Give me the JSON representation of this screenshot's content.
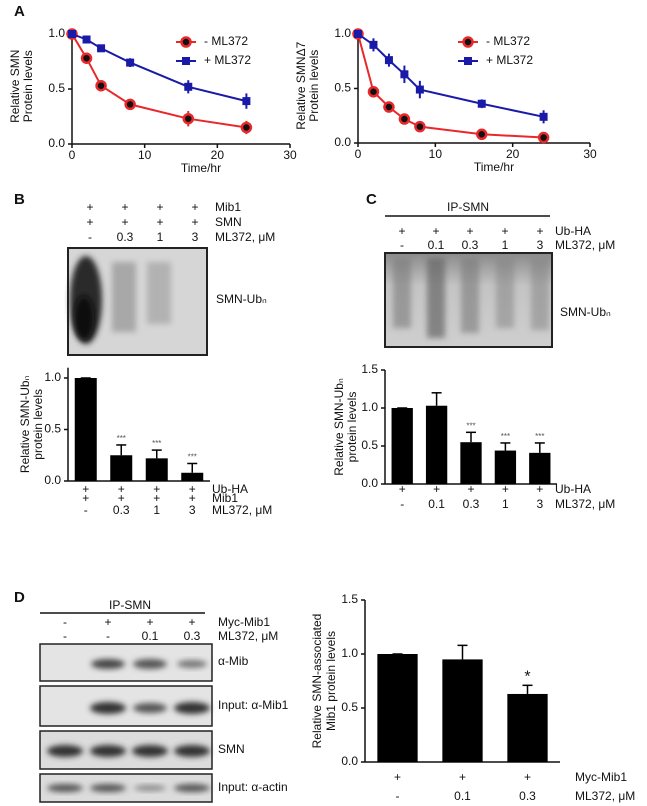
{
  "panels": [
    "A",
    "B",
    "C",
    "D"
  ],
  "chart_data": [
    {
      "type": "line",
      "ylabel": [
        "Relative SMN",
        "Protein levels"
      ],
      "xlabel": "Time/hr",
      "xlim": [
        0,
        30
      ],
      "xticks": [
        0,
        10,
        20,
        30
      ],
      "ylim": [
        0,
        1.05
      ],
      "yticks": [
        {
          "value": 0,
          "label": "0.0"
        },
        {
          "value": 0.5,
          "label": "0.5"
        },
        {
          "value": 1,
          "label": "1.0"
        }
      ],
      "legend": "upper right",
      "series": [
        {
          "name": "-  ML372",
          "color": "#e8282a",
          "marker": "circle",
          "x": [
            0,
            2,
            4,
            8,
            16,
            24
          ],
          "values": [
            1,
            0.78,
            0.53,
            0.36,
            0.23,
            0.15
          ],
          "errors": [
            0,
            0.05,
            0.04,
            0.04,
            0.07,
            0.06
          ]
        },
        {
          "name": "+ ML372",
          "color": "#1a1aa8",
          "marker": "square",
          "x": [
            0,
            2,
            4,
            8,
            16,
            24
          ],
          "values": [
            1,
            0.95,
            0.87,
            0.74,
            0.52,
            0.39
          ],
          "errors": [
            0,
            0.03,
            0.03,
            0.04,
            0.06,
            0.07
          ]
        }
      ]
    },
    {
      "type": "line",
      "ylabel": [
        "Relative SMNΔ7",
        "Protein levels"
      ],
      "xlabel": "Time/hr",
      "xlim": [
        0,
        30
      ],
      "xticks": [
        0,
        10,
        20,
        30
      ],
      "ylim": [
        0,
        1.05
      ],
      "yticks": [
        {
          "value": 0,
          "label": "0.0"
        },
        {
          "value": 0.5,
          "label": "0.5"
        },
        {
          "value": 1,
          "label": "1.0"
        }
      ],
      "legend": "upper right",
      "series": [
        {
          "name": "-  ML372",
          "color": "#e8282a",
          "marker": "circle",
          "x": [
            0,
            2,
            4,
            6,
            8,
            16,
            24
          ],
          "values": [
            1,
            0.47,
            0.33,
            0.22,
            0.15,
            0.08,
            0.05
          ],
          "errors": [
            0,
            0.04,
            0.04,
            0.03,
            0.03,
            0.03,
            0.02
          ]
        },
        {
          "name": "+ ML372",
          "color": "#1a1aa8",
          "marker": "square",
          "x": [
            0,
            2,
            4,
            6,
            8,
            16,
            24
          ],
          "values": [
            1,
            0.9,
            0.76,
            0.63,
            0.49,
            0.36,
            0.24
          ],
          "errors": [
            0,
            0.06,
            0.06,
            0.08,
            0.08,
            0.04,
            0.06
          ]
        }
      ]
    },
    {
      "type": "bar",
      "ylabel": [
        "Relative SMN-Ubₙ",
        "protein levels"
      ],
      "ylim": [
        0,
        1.1
      ],
      "yticks": [
        {
          "value": 0,
          "label": "0.0"
        },
        {
          "value": 0.5,
          "label": "0.5"
        },
        {
          "value": 1,
          "label": "1.0"
        }
      ],
      "color": "#000000",
      "values": [
        1,
        0.25,
        0.22,
        0.08
      ],
      "errors": [
        0,
        0.1,
        0.08,
        0.09
      ],
      "annotations": [
        null,
        "***",
        "***",
        "***"
      ],
      "conditions": [
        {
          "label": "Ub-HA",
          "marks": [
            "+",
            "+",
            "+",
            "+"
          ]
        },
        {
          "label": "Mib1",
          "marks": [
            "+",
            "+",
            "+",
            "+"
          ]
        },
        {
          "label": "ML372, μM",
          "marks": [
            "-",
            "0.3",
            "1",
            "3"
          ]
        }
      ]
    },
    {
      "type": "bar",
      "ylabel": [
        "Relative SMN-Ubₙ",
        "protein levels"
      ],
      "ylim": [
        0,
        1.5
      ],
      "yticks": [
        {
          "value": 0,
          "label": "0.0"
        },
        {
          "value": 0.5,
          "label": "0.5"
        },
        {
          "value": 1,
          "label": "1.0"
        },
        {
          "value": 1.5,
          "label": "1.5"
        }
      ],
      "color": "#000000",
      "values": [
        1,
        1.03,
        0.55,
        0.44,
        0.41
      ],
      "errors": [
        0,
        0.17,
        0.13,
        0.1,
        0.13
      ],
      "annotations": [
        null,
        null,
        "***",
        "***",
        "***"
      ],
      "conditions": [
        {
          "label": "Ub-HA",
          "marks": [
            "+",
            "+",
            "+",
            "+",
            "+"
          ]
        },
        {
          "label": "ML372, μM",
          "marks": [
            "-",
            "0.1",
            "0.3",
            "1",
            "3"
          ]
        }
      ]
    },
    {
      "type": "bar",
      "ylabel": [
        "Relative SMN-associated",
        "Mib1 protein levels"
      ],
      "ylim": [
        0,
        1.5
      ],
      "yticks": [
        {
          "value": 0,
          "label": "0.0"
        },
        {
          "value": 0.5,
          "label": "0.5"
        },
        {
          "value": 1,
          "label": "1.0"
        },
        {
          "value": 1.5,
          "label": "1.5"
        }
      ],
      "color": "#000000",
      "values": [
        1,
        0.95,
        0.63
      ],
      "errors": [
        0,
        0.13,
        0.08
      ],
      "annotations": [
        null,
        null,
        "*"
      ],
      "conditions": [
        {
          "label": "Myc-Mib1",
          "marks": [
            "+",
            "+",
            "+"
          ]
        },
        {
          "label": "ML372, μM",
          "marks": [
            "-",
            "0.1",
            "0.3"
          ]
        }
      ]
    }
  ],
  "blots": [
    {
      "rows": [
        {
          "label": "Mib1",
          "marks": [
            "+",
            "+",
            "+",
            "+"
          ]
        },
        {
          "label": "SMN",
          "marks": [
            "+",
            "+",
            "+",
            "+"
          ]
        },
        {
          "label": "ML372, μM",
          "marks": [
            "-",
            "0.3",
            "1",
            "3"
          ]
        }
      ],
      "band_labels": [
        "SMN-Ubₙ"
      ]
    },
    {
      "header": "IP-SMN",
      "rows": [
        {
          "label": "Ub-HA",
          "marks": [
            "+",
            "+",
            "+",
            "+",
            "+"
          ]
        },
        {
          "label": "ML372, μM",
          "marks": [
            "-",
            "0.1",
            "0.3",
            "1",
            "3"
          ]
        }
      ],
      "band_labels": [
        "SMN-Ubₙ"
      ]
    },
    {
      "header": "IP-SMN",
      "rows": [
        {
          "label": "Myc-Mib1",
          "marks": [
            "-",
            "+",
            "+",
            "+"
          ]
        },
        {
          "label": "ML372, μM",
          "marks": [
            "-",
            "-",
            "0.1",
            "0.3"
          ]
        }
      ],
      "band_labels": [
        "α-Mib",
        "Input: α-Mib1",
        "SMN",
        "Input: α-actin"
      ]
    }
  ]
}
